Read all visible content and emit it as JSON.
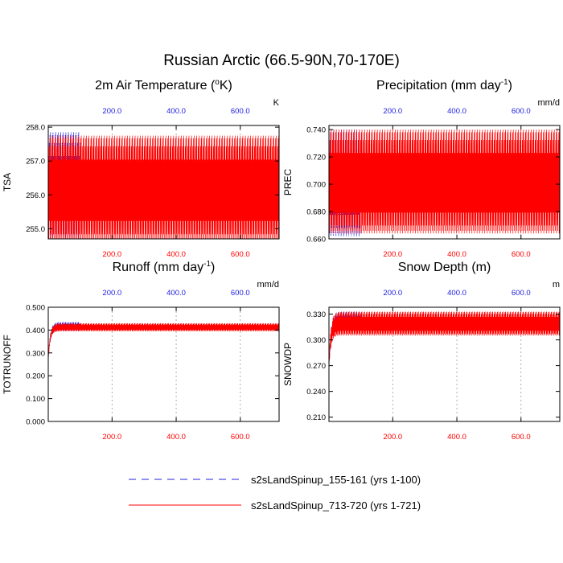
{
  "main_title": "Russian Arctic (66.5-90N,70-170E)",
  "colors": {
    "series1": "#2020dd",
    "series2": "#ff0000",
    "axis": "#000000",
    "grid": "#999999"
  },
  "legend": [
    {
      "label": "s2sLandSpinup_155-161 (yrs 1-100)",
      "color": "#2020dd",
      "style": "dashed"
    },
    {
      "label": "s2sLandSpinup_713-720 (yrs 1-721)",
      "color": "#ff0000",
      "style": "solid"
    }
  ],
  "chart_data": [
    {
      "type": "line",
      "title": "2m Air Temperature (",
      "title_sup": "o",
      "title_tail": "K)",
      "ylabel": "TSA",
      "units": "K",
      "ylim": [
        254.7,
        258.05
      ],
      "yticks": [
        255.0,
        256.0,
        257.0,
        258.0
      ],
      "ytick_labels": [
        "255.0",
        "256.0",
        "257.0",
        "258.0"
      ],
      "xlim": [
        1,
        721
      ],
      "xticks": [
        200,
        400,
        600
      ],
      "xtick_labels": [
        "200.0",
        "400.0",
        "600.0"
      ],
      "series": [
        {
          "name": "s2sLandSpinup_155-161 (yrs 1-100)",
          "years": [
            1,
            100
          ],
          "min": 254.72,
          "max": 257.85,
          "mean": 256.9,
          "spinup": 0
        },
        {
          "name": "s2sLandSpinup_713-720 (yrs 1-721)",
          "years": [
            1,
            721
          ],
          "min": 254.6,
          "max": 257.75,
          "mean": 256.85,
          "spinup": 0
        }
      ]
    },
    {
      "type": "line",
      "title": "Precipitation (mm day",
      "title_sup": "-1",
      "title_tail": ")",
      "ylabel": "PREC",
      "units": "mm/d",
      "ylim": [
        0.66,
        0.743
      ],
      "yticks": [
        0.66,
        0.68,
        0.7,
        0.72,
        0.74
      ],
      "ytick_labels": [
        "0.660",
        "0.680",
        "0.700",
        "0.720",
        "0.740"
      ],
      "xlim": [
        1,
        721
      ],
      "xticks": [
        200,
        400,
        600
      ],
      "xtick_labels": [
        "200.0",
        "400.0",
        "600.0"
      ],
      "series": [
        {
          "name": "s2sLandSpinup_155-161 (yrs 1-100)",
          "years": [
            1,
            100
          ],
          "min": 0.662,
          "max": 0.74,
          "mean": 0.7,
          "spinup": 0
        },
        {
          "name": "s2sLandSpinup_713-720 (yrs 1-721)",
          "years": [
            1,
            721
          ],
          "min": 0.664,
          "max": 0.74,
          "mean": 0.7,
          "spinup": 0
        }
      ]
    },
    {
      "type": "line",
      "title": "Runoff (mm day",
      "title_sup": "-1",
      "title_tail": ")",
      "ylabel": "TOTRUNOFF",
      "units": "mm/d",
      "ylim": [
        0.0,
        0.5
      ],
      "yticks": [
        0.0,
        0.1,
        0.2,
        0.3,
        0.4,
        0.5
      ],
      "ytick_labels": [
        "0.000",
        "0.100",
        "0.200",
        "0.300",
        "0.400",
        "0.500"
      ],
      "xlim": [
        1,
        721
      ],
      "xticks": [
        200,
        400,
        600
      ],
      "xtick_labels": [
        "200.0",
        "400.0",
        "600.0"
      ],
      "series": [
        {
          "name": "s2sLandSpinup_155-161 (yrs 1-100)",
          "years": [
            1,
            100
          ],
          "min": 0.395,
          "max": 0.435,
          "mean": 0.415,
          "spinup": 0.27
        },
        {
          "name": "s2sLandSpinup_713-720 (yrs 1-721)",
          "years": [
            1,
            721
          ],
          "min": 0.395,
          "max": 0.43,
          "mean": 0.415,
          "spinup": 0.27
        }
      ]
    },
    {
      "type": "line",
      "title": "Snow Depth (m)",
      "title_sup": "",
      "title_tail": "",
      "ylabel": "SNOWDP",
      "units": "m",
      "ylim": [
        0.205,
        0.338
      ],
      "yticks": [
        0.21,
        0.24,
        0.27,
        0.3,
        0.33
      ],
      "ytick_labels": [
        "0.210",
        "0.240",
        "0.270",
        "0.300",
        "0.330"
      ],
      "xlim": [
        1,
        721
      ],
      "xticks": [
        200,
        400,
        600
      ],
      "xtick_labels": [
        "200.0",
        "400.0",
        "600.0"
      ],
      "series": [
        {
          "name": "s2sLandSpinup_155-161 (yrs 1-100)",
          "years": [
            1,
            100
          ],
          "min": 0.312,
          "max": 0.333,
          "mean": 0.325,
          "spinup": 0.27
        },
        {
          "name": "s2sLandSpinup_713-720 (yrs 1-721)",
          "years": [
            1,
            721
          ],
          "min": 0.305,
          "max": 0.333,
          "mean": 0.322,
          "spinup": 0.27
        }
      ]
    }
  ]
}
